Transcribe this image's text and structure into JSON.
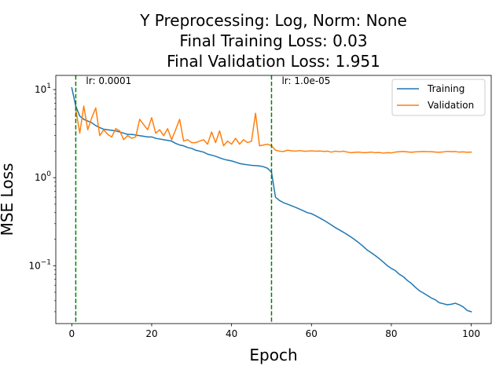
{
  "chart_data": {
    "type": "line",
    "title_lines": [
      "Y Preprocessing: Log, Norm: None",
      "Final Training Loss: 0.03",
      "Final Validation Loss: 1.951"
    ],
    "xlabel": "Epoch",
    "ylabel": "MSE Loss",
    "yscale": "log",
    "xlim": [
      -4,
      105
    ],
    "ylim": [
      0.022,
      14.5
    ],
    "x_ticks": [
      0,
      20,
      40,
      60,
      80,
      100
    ],
    "y_ticks": [
      {
        "value": 10,
        "base": "10",
        "exp": "1"
      },
      {
        "value": 1,
        "base": "10",
        "exp": "0"
      },
      {
        "value": 0.1,
        "base": "10",
        "exp": "−1"
      }
    ],
    "legend_position": "upper right",
    "vlines": [
      {
        "x": 1,
        "label": "lr: 0.0001",
        "color": "#008000"
      },
      {
        "x": 50,
        "label": "lr: 1.0e-05",
        "color": "#008000"
      }
    ],
    "series": [
      {
        "name": "Training",
        "color": "#1f77b4",
        "x": [
          0,
          1,
          2,
          3,
          4,
          5,
          6,
          7,
          8,
          9,
          10,
          11,
          12,
          13,
          14,
          15,
          16,
          17,
          18,
          19,
          20,
          21,
          22,
          23,
          24,
          25,
          26,
          27,
          28,
          29,
          30,
          31,
          32,
          33,
          34,
          35,
          36,
          37,
          38,
          39,
          40,
          41,
          42,
          43,
          44,
          45,
          46,
          47,
          48,
          49,
          50,
          51,
          52,
          53,
          54,
          55,
          56,
          57,
          58,
          59,
          60,
          61,
          62,
          63,
          64,
          65,
          66,
          67,
          68,
          69,
          70,
          71,
          72,
          73,
          74,
          75,
          76,
          77,
          78,
          79,
          80,
          81,
          82,
          83,
          84,
          85,
          86,
          87,
          88,
          89,
          90,
          91,
          92,
          93,
          94,
          95,
          96,
          97,
          98,
          99,
          100
        ],
        "y": [
          10.5,
          6.5,
          5.0,
          4.6,
          4.4,
          4.2,
          3.9,
          3.7,
          3.55,
          3.5,
          3.45,
          3.4,
          3.3,
          3.2,
          3.1,
          3.1,
          3.05,
          3.0,
          2.95,
          2.9,
          2.9,
          2.8,
          2.75,
          2.7,
          2.65,
          2.6,
          2.45,
          2.35,
          2.3,
          2.2,
          2.15,
          2.05,
          2.0,
          1.95,
          1.85,
          1.8,
          1.75,
          1.68,
          1.62,
          1.58,
          1.55,
          1.5,
          1.45,
          1.42,
          1.4,
          1.38,
          1.37,
          1.36,
          1.33,
          1.28,
          1.15,
          0.6,
          0.55,
          0.52,
          0.5,
          0.48,
          0.46,
          0.44,
          0.42,
          0.4,
          0.39,
          0.37,
          0.35,
          0.33,
          0.31,
          0.29,
          0.27,
          0.255,
          0.24,
          0.225,
          0.21,
          0.195,
          0.18,
          0.165,
          0.15,
          0.14,
          0.13,
          0.12,
          0.11,
          0.1,
          0.093,
          0.088,
          0.08,
          0.075,
          0.068,
          0.063,
          0.057,
          0.052,
          0.049,
          0.046,
          0.043,
          0.041,
          0.038,
          0.037,
          0.036,
          0.0365,
          0.0375,
          0.036,
          0.034,
          0.031,
          0.03
        ]
      },
      {
        "name": "Validation",
        "color": "#ff7f0e",
        "x": [
          0,
          1,
          2,
          3,
          4,
          5,
          6,
          7,
          8,
          9,
          10,
          11,
          12,
          13,
          14,
          15,
          16,
          17,
          18,
          19,
          20,
          21,
          22,
          23,
          24,
          25,
          26,
          27,
          28,
          29,
          30,
          31,
          32,
          33,
          34,
          35,
          36,
          37,
          38,
          39,
          40,
          41,
          42,
          43,
          44,
          45,
          46,
          47,
          48,
          49,
          50,
          51,
          52,
          53,
          54,
          55,
          56,
          57,
          58,
          59,
          60,
          61,
          62,
          63,
          64,
          65,
          66,
          67,
          68,
          69,
          70,
          71,
          72,
          73,
          74,
          75,
          76,
          77,
          78,
          79,
          80,
          81,
          82,
          83,
          84,
          85,
          86,
          87,
          88,
          89,
          90,
          91,
          92,
          93,
          94,
          95,
          96,
          97,
          98,
          99,
          100
        ],
        "y": [
          null,
          6.0,
          3.2,
          6.5,
          3.5,
          4.8,
          6.2,
          3.0,
          3.5,
          3.1,
          2.9,
          3.6,
          3.4,
          2.7,
          3.0,
          2.8,
          2.9,
          4.6,
          4.0,
          3.5,
          4.8,
          3.2,
          3.5,
          3.0,
          3.6,
          2.7,
          3.5,
          4.6,
          2.6,
          2.7,
          2.5,
          2.5,
          2.6,
          2.7,
          2.4,
          3.3,
          2.5,
          3.4,
          2.3,
          2.6,
          2.4,
          2.8,
          2.4,
          2.7,
          2.5,
          2.6,
          5.4,
          2.3,
          2.35,
          2.4,
          2.3,
          2.05,
          2.0,
          1.98,
          2.05,
          2.02,
          2.0,
          2.03,
          2.0,
          2.0,
          2.02,
          2.0,
          2.01,
          1.99,
          2.0,
          1.95,
          2.0,
          1.97,
          2.0,
          1.95,
          1.92,
          1.94,
          1.95,
          1.92,
          1.93,
          1.95,
          1.92,
          1.93,
          1.9,
          1.92,
          1.91,
          1.95,
          1.97,
          1.98,
          1.96,
          1.94,
          1.96,
          1.97,
          1.98,
          1.97,
          1.97,
          1.95,
          1.94,
          1.96,
          1.99,
          1.97,
          1.98,
          1.95,
          1.96,
          1.94,
          1.95
        ]
      }
    ]
  }
}
